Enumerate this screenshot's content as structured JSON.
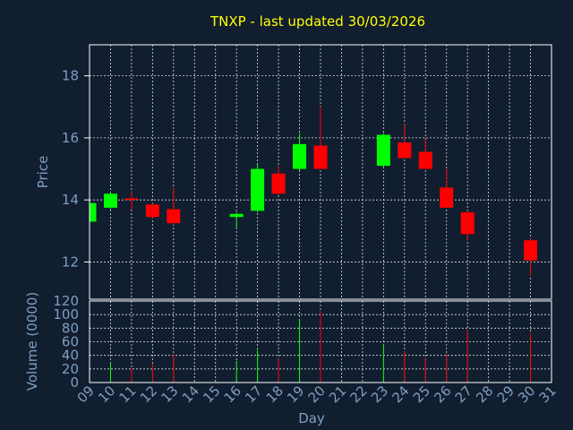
{
  "chart_data": {
    "type": "candlestick",
    "title": "TNXP - last updated 30/03/2026",
    "xlabel": "Day",
    "ylabel_price": "Price",
    "ylabel_volume": "Volume (0000)",
    "x_ticks": [
      "09",
      "10",
      "11",
      "12",
      "13",
      "14",
      "15",
      "16",
      "17",
      "18",
      "19",
      "20",
      "21",
      "22",
      "23",
      "24",
      "25",
      "26",
      "27",
      "28",
      "29",
      "30",
      "31"
    ],
    "price_ticks": [
      12,
      14,
      16,
      18
    ],
    "price_ylim": [
      10.8,
      19.0
    ],
    "volume_ticks": [
      0,
      20,
      40,
      60,
      80,
      100,
      120
    ],
    "volume_ylim": [
      0,
      120
    ],
    "grid": true,
    "colors": {
      "up": "#00ff00",
      "down": "#ff0000",
      "title": "#ffff00",
      "axis": "#7f9ec0",
      "background": "#111e30",
      "frame": "#ffffff"
    },
    "candles": [
      {
        "day": "09",
        "open": 13.3,
        "high": 13.95,
        "low": 13.3,
        "close": 13.9,
        "volume": 0
      },
      {
        "day": "10",
        "open": 13.75,
        "high": 14.25,
        "low": 13.7,
        "close": 14.2,
        "volume": 28
      },
      {
        "day": "11",
        "open": 14.05,
        "high": 14.25,
        "low": 13.7,
        "close": 14.0,
        "volume": 20
      },
      {
        "day": "12",
        "open": 13.85,
        "high": 13.9,
        "low": 13.4,
        "close": 13.45,
        "volume": 28
      },
      {
        "day": "13",
        "open": 13.7,
        "high": 14.4,
        "low": 13.2,
        "close": 13.25,
        "volume": 42
      },
      {
        "day": "16",
        "open": 13.45,
        "high": 13.6,
        "low": 13.1,
        "close": 13.55,
        "volume": 32
      },
      {
        "day": "17",
        "open": 13.65,
        "high": 15.15,
        "low": 13.6,
        "close": 15.0,
        "volume": 48
      },
      {
        "day": "18",
        "open": 14.85,
        "high": 15.1,
        "low": 14.15,
        "close": 14.2,
        "volume": 35
      },
      {
        "day": "19",
        "open": 15.0,
        "high": 16.15,
        "low": 14.95,
        "close": 15.8,
        "volume": 93
      },
      {
        "day": "20",
        "open": 15.75,
        "high": 17.0,
        "low": 15.0,
        "close": 15.0,
        "volume": 105
      },
      {
        "day": "23",
        "open": 15.1,
        "high": 16.15,
        "low": 15.05,
        "close": 16.1,
        "volume": 57
      },
      {
        "day": "24",
        "open": 15.85,
        "high": 16.45,
        "low": 15.35,
        "close": 15.35,
        "volume": 46
      },
      {
        "day": "25",
        "open": 15.55,
        "high": 15.95,
        "low": 15.0,
        "close": 15.0,
        "volume": 35
      },
      {
        "day": "26",
        "open": 14.4,
        "high": 15.0,
        "low": 13.75,
        "close": 13.75,
        "volume": 42
      },
      {
        "day": "27",
        "open": 13.6,
        "high": 13.65,
        "low": 12.7,
        "close": 12.9,
        "volume": 78
      },
      {
        "day": "30",
        "open": 12.7,
        "high": 12.75,
        "low": 11.55,
        "close": 12.05,
        "volume": 73
      }
    ]
  }
}
